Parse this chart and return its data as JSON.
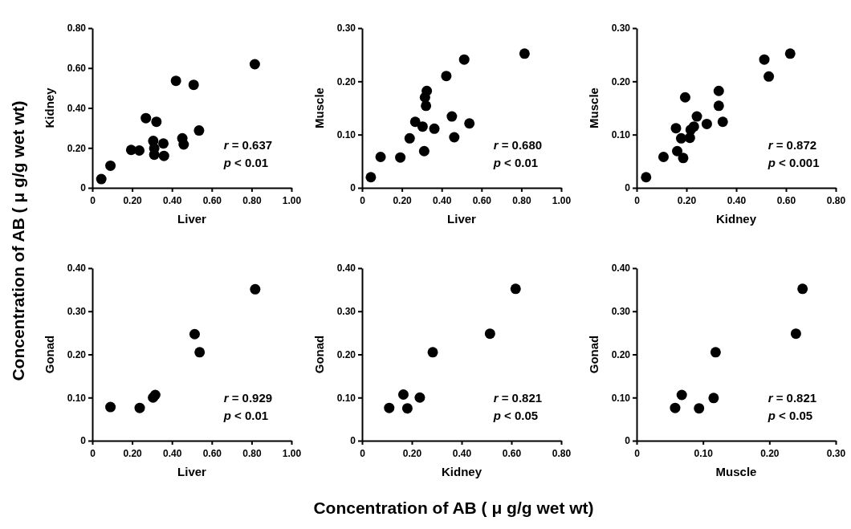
{
  "chart_data": [
    {
      "type": "scatter",
      "xlabel": "Liver",
      "ylabel": "Kidney",
      "marker": "circle",
      "grid": false,
      "xlim": [
        0,
        1
      ],
      "xticks": [
        {
          "value": 0,
          "label": "0"
        },
        {
          "value": 0.2,
          "label": "0.20"
        },
        {
          "value": 0.4,
          "label": "0.40"
        },
        {
          "value": 0.6,
          "label": "0.60"
        },
        {
          "value": 0.8,
          "label": "0.80"
        },
        {
          "value": 1,
          "label": "1.00"
        }
      ],
      "ylim": [
        0,
        0.8
      ],
      "yticks": [
        {
          "value": 0,
          "label": "0"
        },
        {
          "value": 0.2,
          "label": "0.20"
        },
        {
          "value": 0.4,
          "label": "0.40"
        },
        {
          "value": 0.6,
          "label": "0.60"
        },
        {
          "value": 0.8,
          "label": "0.80"
        }
      ],
      "annotations": [
        "r = 0.637",
        "p < 0.01"
      ],
      "series": [
        {
          "color": "#000000",
          "x": [
            0.045,
            0.091,
            0.195,
            0.236,
            0.269,
            0.322,
            0.306,
            0.311,
            0.311,
            0.357,
            0.36,
            0.42,
            0.509,
            0.452,
            0.459,
            0.536,
            0.816
          ],
          "values": [
            0.044,
            0.111,
            0.19,
            0.187,
            0.349,
            0.331,
            0.235,
            0.198,
            0.166,
            0.222,
            0.16,
            0.536,
            0.516,
            0.248,
            0.217,
            0.287,
            0.619
          ]
        }
      ]
    },
    {
      "type": "scatter",
      "xlabel": "Liver",
      "ylabel": "Muscle",
      "marker": "circle",
      "grid": false,
      "xlim": [
        0,
        1
      ],
      "xticks": [
        {
          "value": 0,
          "label": "0"
        },
        {
          "value": 0.2,
          "label": "0.20"
        },
        {
          "value": 0.4,
          "label": "0.40"
        },
        {
          "value": 0.6,
          "label": "0.60"
        },
        {
          "value": 0.8,
          "label": "0.80"
        },
        {
          "value": 1,
          "label": "1.00"
        }
      ],
      "ylim": [
        0,
        0.3
      ],
      "yticks": [
        {
          "value": 0,
          "label": "0"
        },
        {
          "value": 0.1,
          "label": "0.10"
        },
        {
          "value": 0.2,
          "label": "0.20"
        },
        {
          "value": 0.3,
          "label": "0.30"
        }
      ],
      "annotations": [
        "r = 0.680",
        "p < 0.01"
      ],
      "series": [
        {
          "color": "#000000",
          "x": [
            0.044,
            0.093,
            0.192,
            0.239,
            0.267,
            0.304,
            0.312,
            0.316,
            0.325,
            0.321,
            0.363,
            0.423,
            0.451,
            0.463,
            0.513,
            0.539,
            0.816
          ],
          "values": [
            0.02,
            0.058,
            0.057,
            0.093,
            0.124,
            0.115,
            0.069,
            0.17,
            0.182,
            0.154,
            0.111,
            0.21,
            0.134,
            0.095,
            0.241,
            0.121,
            0.252
          ]
        }
      ]
    },
    {
      "type": "scatter",
      "xlabel": "Kidney",
      "ylabel": "Muscle",
      "marker": "circle",
      "grid": false,
      "xlim": [
        0,
        0.8
      ],
      "xticks": [
        {
          "value": 0,
          "label": "0"
        },
        {
          "value": 0.2,
          "label": "0.20"
        },
        {
          "value": 0.4,
          "label": "0.40"
        },
        {
          "value": 0.6,
          "label": "0.60"
        },
        {
          "value": 0.8,
          "label": "0.80"
        }
      ],
      "ylim": [
        0,
        0.3
      ],
      "yticks": [
        {
          "value": 0,
          "label": "0"
        },
        {
          "value": 0.1,
          "label": "0.10"
        },
        {
          "value": 0.2,
          "label": "0.20"
        },
        {
          "value": 0.3,
          "label": "0.30"
        }
      ],
      "annotations": [
        "r = 0.872",
        "p < 0.001"
      ],
      "series": [
        {
          "color": "#000000",
          "x": [
            0.038,
            0.108,
            0.163,
            0.187,
            0.158,
            0.179,
            0.195,
            0.214,
            0.217,
            0.23,
            0.242,
            0.282,
            0.33,
            0.33,
            0.346,
            0.513,
            0.531,
            0.617
          ],
          "values": [
            0.02,
            0.058,
            0.069,
            0.056,
            0.112,
            0.093,
            0.17,
            0.094,
            0.109,
            0.115,
            0.134,
            0.12,
            0.182,
            0.154,
            0.124,
            0.241,
            0.209,
            0.252
          ]
        }
      ]
    },
    {
      "type": "scatter",
      "xlabel": "Liver",
      "ylabel": "Gonad",
      "marker": "circle",
      "grid": false,
      "xlim": [
        0,
        1
      ],
      "xticks": [
        {
          "value": 0,
          "label": "0"
        },
        {
          "value": 0.2,
          "label": "0.20"
        },
        {
          "value": 0.4,
          "label": "0.40"
        },
        {
          "value": 0.6,
          "label": "0.60"
        },
        {
          "value": 0.8,
          "label": "0.80"
        },
        {
          "value": 1,
          "label": "1.00"
        }
      ],
      "ylim": [
        0,
        0.4
      ],
      "yticks": [
        {
          "value": 0,
          "label": "0"
        },
        {
          "value": 0.1,
          "label": "0.10"
        },
        {
          "value": 0.2,
          "label": "0.20"
        },
        {
          "value": 0.3,
          "label": "0.30"
        },
        {
          "value": 0.4,
          "label": "0.40"
        }
      ],
      "annotations": [
        "r = 0.929",
        "p < 0.01"
      ],
      "series": [
        {
          "color": "#000000",
          "x": [
            0.091,
            0.238,
            0.305,
            0.316,
            0.514,
            0.539,
            0.818
          ],
          "values": [
            0.078,
            0.076,
            0.1,
            0.106,
            0.247,
            0.205,
            0.351
          ]
        }
      ]
    },
    {
      "type": "scatter",
      "xlabel": "Kidney",
      "ylabel": "Gonad",
      "marker": "circle",
      "grid": false,
      "xlim": [
        0,
        0.8
      ],
      "xticks": [
        {
          "value": 0,
          "label": "0"
        },
        {
          "value": 0.2,
          "label": "0.20"
        },
        {
          "value": 0.4,
          "label": "0.40"
        },
        {
          "value": 0.6,
          "label": "0.60"
        },
        {
          "value": 0.8,
          "label": "0.80"
        }
      ],
      "ylim": [
        0,
        0.4
      ],
      "yticks": [
        {
          "value": 0,
          "label": "0"
        },
        {
          "value": 0.1,
          "label": "0.10"
        },
        {
          "value": 0.2,
          "label": "0.20"
        },
        {
          "value": 0.3,
          "label": "0.30"
        },
        {
          "value": 0.4,
          "label": "0.40"
        }
      ],
      "annotations": [
        "r = 0.821",
        "p < 0.05"
      ],
      "series": [
        {
          "color": "#000000",
          "x": [
            0.109,
            0.166,
            0.182,
            0.232,
            0.284,
            0.514,
            0.617
          ],
          "values": [
            0.076,
            0.107,
            0.075,
            0.1,
            0.205,
            0.248,
            0.352
          ]
        }
      ]
    },
    {
      "type": "scatter",
      "xlabel": "Muscle",
      "ylabel": "Gonad",
      "marker": "circle",
      "grid": false,
      "xlim": [
        0,
        0.3
      ],
      "xticks": [
        {
          "value": 0,
          "label": "0"
        },
        {
          "value": 0.1,
          "label": "0.10"
        },
        {
          "value": 0.2,
          "label": "0.20"
        },
        {
          "value": 0.3,
          "label": "0.30"
        }
      ],
      "ylim": [
        0,
        0.4
      ],
      "yticks": [
        {
          "value": 0,
          "label": "0"
        },
        {
          "value": 0.1,
          "label": "0.10"
        },
        {
          "value": 0.2,
          "label": "0.20"
        },
        {
          "value": 0.3,
          "label": "0.30"
        },
        {
          "value": 0.4,
          "label": "0.40"
        }
      ],
      "annotations": [
        "r = 0.821",
        "p < 0.05"
      ],
      "series": [
        {
          "color": "#000000",
          "x": [
            0.058,
            0.068,
            0.094,
            0.116,
            0.119,
            0.24,
            0.25
          ],
          "values": [
            0.076,
            0.106,
            0.075,
            0.099,
            0.205,
            0.248,
            0.352
          ]
        }
      ]
    },
    {
      "type": "other",
      "xlabel": "Concentration of AB ( μ g/g wet wt)",
      "ylabel": "Concentration of AB ( μ g/g wet wt)"
    }
  ]
}
